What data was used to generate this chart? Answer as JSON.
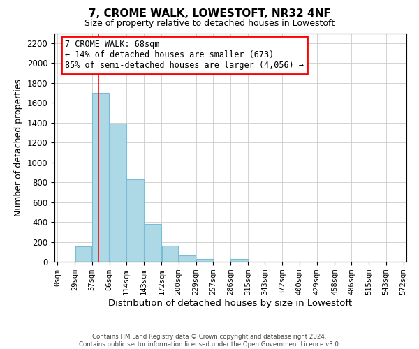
{
  "title": "7, CROME WALK, LOWESTOFT, NR32 4NF",
  "subtitle": "Size of property relative to detached houses in Lowestoft",
  "xlabel": "Distribution of detached houses by size in Lowestoft",
  "ylabel": "Number of detached properties",
  "bar_edges": [
    0,
    29,
    57,
    86,
    114,
    143,
    172,
    200,
    229,
    257,
    286,
    315,
    343,
    372,
    400,
    429,
    458,
    486,
    515,
    543,
    572
  ],
  "bar_heights": [
    0,
    155,
    1700,
    1390,
    830,
    380,
    160,
    65,
    30,
    0,
    30,
    0,
    0,
    0,
    0,
    0,
    0,
    0,
    0,
    0
  ],
  "bar_color": "#add8e6",
  "bar_edgecolor": "#7bbcd5",
  "vline_x": 68,
  "vline_color": "red",
  "annotation_title": "7 CROME WALK: 68sqm",
  "annotation_line1": "← 14% of detached houses are smaller (673)",
  "annotation_line2": "85% of semi-detached houses are larger (4,056) →",
  "ylim": [
    0,
    2300
  ],
  "yticks": [
    0,
    200,
    400,
    600,
    800,
    1000,
    1200,
    1400,
    1600,
    1800,
    2000,
    2200
  ],
  "xtick_labels": [
    "0sqm",
    "29sqm",
    "57sqm",
    "86sqm",
    "114sqm",
    "143sqm",
    "172sqm",
    "200sqm",
    "229sqm",
    "257sqm",
    "286sqm",
    "315sqm",
    "343sqm",
    "372sqm",
    "400sqm",
    "429sqm",
    "458sqm",
    "486sqm",
    "515sqm",
    "543sqm",
    "572sqm"
  ],
  "footer_line1": "Contains HM Land Registry data © Crown copyright and database right 2024.",
  "footer_line2": "Contains public sector information licensed under the Open Government Licence v3.0.",
  "background_color": "#ffffff",
  "grid_color": "#cccccc"
}
